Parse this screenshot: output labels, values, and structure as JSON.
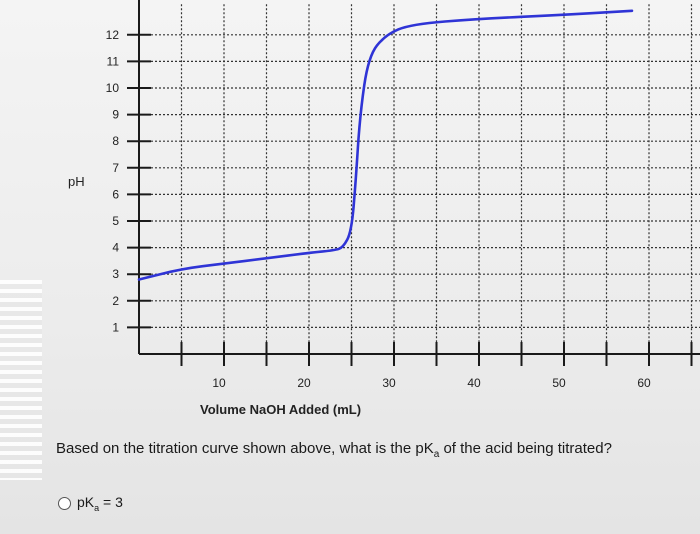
{
  "question": {
    "prefix": "Based on the titration curve shown above, what is the pK",
    "sub": "a",
    "suffix": " of the acid being titrated?"
  },
  "options": [
    {
      "prefix": "pK",
      "sub": "a",
      "suffix": " = 3"
    }
  ],
  "colors": {
    "curve": "#2f34d6",
    "axis": "#1a1a1a",
    "grid": "#333333"
  },
  "chart_data": {
    "type": "line",
    "title": "",
    "xlabel": "Volume NaOH Added (mL)",
    "ylabel": "pH",
    "xlim": [
      0,
      65
    ],
    "ylim": [
      0,
      13
    ],
    "x_ticks": [
      10,
      20,
      30,
      40,
      50,
      60
    ],
    "y_ticks": [
      1,
      2,
      3,
      4,
      5,
      6,
      7,
      8,
      9,
      10,
      11,
      12
    ],
    "grid": true,
    "series": [
      {
        "values": [
          [
            0,
            2.8
          ],
          [
            5,
            3.2
          ],
          [
            10,
            3.4
          ],
          [
            15,
            3.6
          ],
          [
            20,
            3.8
          ],
          [
            23,
            3.9
          ],
          [
            24,
            4.0
          ],
          [
            25,
            4.6
          ],
          [
            25.5,
            6.5
          ],
          [
            26,
            9.0
          ],
          [
            27,
            11.2
          ],
          [
            29,
            12.0
          ],
          [
            32,
            12.4
          ],
          [
            40,
            12.6
          ],
          [
            50,
            12.75
          ],
          [
            58,
            12.9
          ]
        ]
      }
    ]
  }
}
